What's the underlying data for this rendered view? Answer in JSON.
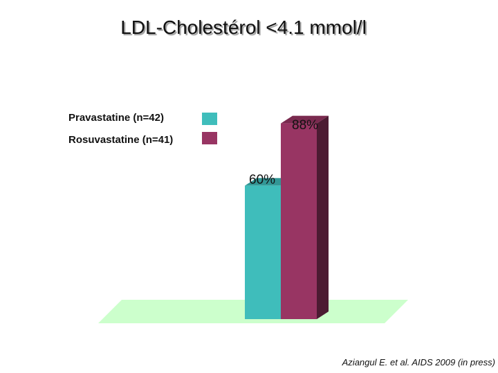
{
  "title": "LDL-Cholestérol <4.1 mmol/l",
  "citation": "Aziangul E. et al. AIDS 2009 (in press)",
  "chart_data": {
    "type": "bar",
    "title": "LDL-Cholestérol <4.1 mmol/l",
    "categories": [
      ""
    ],
    "series": [
      {
        "name": "Pravastatine (n=42)",
        "values": [
          60
        ],
        "label": "60%",
        "color": "#3fbdbb"
      },
      {
        "name": "Rosuvastatine (n=41)",
        "values": [
          88
        ],
        "label": "88%",
        "color": "#983563"
      }
    ],
    "ylim": [
      0,
      100
    ],
    "xlabel": "",
    "ylabel": "",
    "grid": false,
    "legend_position": "top-left",
    "floor_color": "#ccffcc"
  }
}
